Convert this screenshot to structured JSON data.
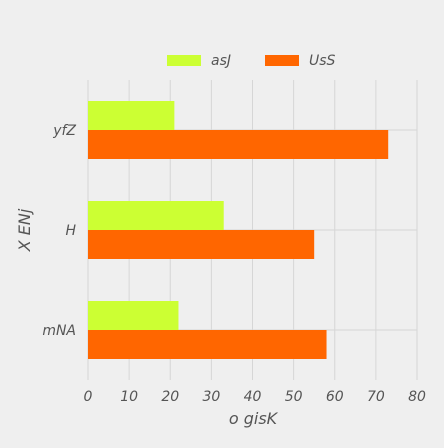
{
  "chart_data": {
    "type": "bar",
    "orientation": "horizontal",
    "title": "",
    "xlabel": "o gisK",
    "ylabel": "X ENj",
    "categories": [
      "mNA",
      "H",
      "yfZ"
    ],
    "series": [
      {
        "name": "asJ",
        "color": "#ccff33",
        "values": [
          22,
          33,
          21
        ]
      },
      {
        "name": "UsS",
        "color": "#ff6600",
        "values": [
          58,
          55,
          73
        ]
      }
    ],
    "xlim": [
      0,
      80
    ],
    "xticks": [
      0,
      10,
      20,
      30,
      40,
      50,
      60,
      70,
      80
    ],
    "grid": true,
    "legend": {
      "position": "top-center",
      "orientation": "horizontal"
    },
    "colors": {
      "background": "#efefef",
      "grid": "#d6d6d6",
      "text": "#555555"
    }
  }
}
